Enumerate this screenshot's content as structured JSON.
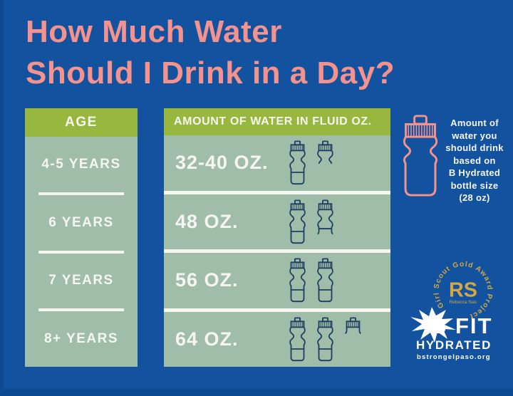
{
  "title": {
    "line1": "How Much Water",
    "line2": "Should I Drink in a Day?"
  },
  "colors": {
    "background_blue": "#12529f",
    "header_green": "#97b73f",
    "table_sage": "#9fbda9",
    "title_pink": "#f4928e",
    "bottle_outline_navy": "#1e3e61",
    "text_white": "#f6f6f0",
    "logo_gold": "#d3a843"
  },
  "age_table": {
    "header": "AGE",
    "rows": [
      "4-5 YEARS",
      "6 YEARS",
      "7 YEARS",
      "8+ YEARS"
    ]
  },
  "water_table": {
    "header": "AMOUNT OF WATER IN FLUID OZ.",
    "rows": [
      {
        "label": "32-40 OZ.",
        "bottles": [
          "full",
          "half"
        ]
      },
      {
        "label": "48 OZ.",
        "bottles": [
          "full",
          "threequarter"
        ]
      },
      {
        "label": "56 OZ.",
        "bottles": [
          "full",
          "full"
        ]
      },
      {
        "label": "64 OZ.",
        "bottles": [
          "full",
          "full",
          "cap"
        ]
      }
    ]
  },
  "legend": {
    "caption": "Amount of\nwater you\nshould drink\nbased on\nB Hydrated\nbottle size\n(28 oz)",
    "bottle_icon": "pink-water-bottle",
    "bottle_size_oz": "28 oz"
  },
  "logos": {
    "rs": {
      "circle_text": "Girl Scout Gold Award Project",
      "initials": "RS",
      "subtext": "Rebecca Sias"
    },
    "bfit": {
      "line1": "B FIT",
      "line2": "HYDRATED",
      "line3": "bstrongelpaso.org"
    }
  },
  "chart_data": {
    "type": "table",
    "title": "How Much Water Should I Drink in a Day?",
    "columns": [
      "AGE",
      "AMOUNT OF WATER IN FLUID OZ."
    ],
    "rows": [
      [
        "4-5 YEARS",
        "32-40 OZ."
      ],
      [
        "6 YEARS",
        "48 OZ."
      ],
      [
        "7 YEARS",
        "56 OZ."
      ],
      [
        "8+ YEARS",
        "64 OZ."
      ]
    ],
    "bottle_unit_oz": 28,
    "bottles_depicted": [
      [
        "full",
        "half"
      ],
      [
        "full",
        "threequarter"
      ],
      [
        "full",
        "full"
      ],
      [
        "full",
        "full",
        "cap"
      ]
    ]
  }
}
